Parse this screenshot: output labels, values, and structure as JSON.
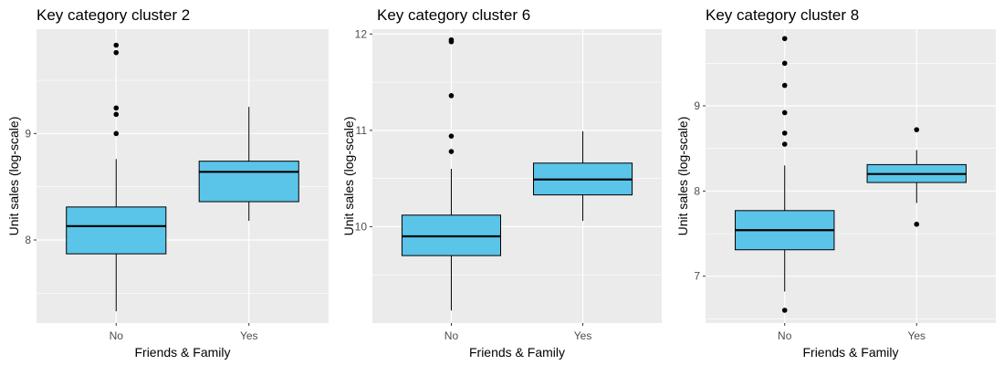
{
  "colors": {
    "panel_background": "#ebebeb",
    "grid_major": "#ffffff",
    "box_fill": "#5bc4e9",
    "box_stroke": "#000000",
    "tick_label": "#4d4d4d"
  },
  "chart_data": [
    {
      "type": "boxplot",
      "title": "Key category cluster 2",
      "xlabel": "Friends & Family",
      "ylabel": "Unit sales (log-scale)",
      "categories": [
        "No",
        "Yes"
      ],
      "ylim": [
        7.22,
        9.98
      ],
      "y_ticks": [
        8,
        9
      ],
      "y_tick_labels": [
        "8",
        "9"
      ],
      "grid": true,
      "boxes": [
        {
          "category": "No",
          "whisker_low": 7.33,
          "q1": 7.87,
          "median": 8.13,
          "q3": 8.31,
          "whisker_high": 8.76,
          "outliers": [
            9.0,
            9.18,
            9.24,
            9.76,
            9.83
          ]
        },
        {
          "category": "Yes",
          "whisker_low": 8.18,
          "q1": 8.36,
          "median": 8.64,
          "q3": 8.74,
          "whisker_high": 9.25,
          "outliers": []
        }
      ]
    },
    {
      "type": "boxplot",
      "title": "Key category cluster 6",
      "xlabel": "Friends & Family",
      "ylabel": "Unit sales (log-scale)",
      "categories": [
        "No",
        "Yes"
      ],
      "ylim": [
        9.0,
        12.05
      ],
      "y_ticks": [
        10,
        11,
        12
      ],
      "y_tick_labels": [
        "10",
        "11",
        "12"
      ],
      "grid": true,
      "boxes": [
        {
          "category": "No",
          "whisker_low": 9.13,
          "q1": 9.7,
          "median": 9.9,
          "q3": 10.12,
          "whisker_high": 10.6,
          "outliers": [
            10.78,
            10.94,
            11.36,
            11.92,
            11.94
          ]
        },
        {
          "category": "Yes",
          "whisker_low": 10.06,
          "q1": 10.33,
          "median": 10.49,
          "q3": 10.66,
          "whisker_high": 10.99,
          "outliers": []
        }
      ]
    },
    {
      "type": "boxplot",
      "title": "Key category cluster 8",
      "xlabel": "Friends & Family",
      "ylabel": "Unit sales (log-scale)",
      "categories": [
        "No",
        "Yes"
      ],
      "ylim": [
        6.45,
        9.9
      ],
      "y_ticks": [
        7,
        8,
        9
      ],
      "y_tick_labels": [
        "7",
        "8",
        "9"
      ],
      "grid": true,
      "boxes": [
        {
          "category": "No",
          "whisker_low": 6.82,
          "q1": 7.31,
          "median": 7.54,
          "q3": 7.77,
          "whisker_high": 8.3,
          "outliers": [
            6.6,
            8.55,
            8.68,
            8.92,
            9.24,
            9.5,
            9.79
          ]
        },
        {
          "category": "Yes",
          "whisker_low": 7.86,
          "q1": 8.1,
          "median": 8.2,
          "q3": 8.31,
          "whisker_high": 8.48,
          "outliers": [
            7.61,
            8.72
          ]
        }
      ]
    }
  ]
}
